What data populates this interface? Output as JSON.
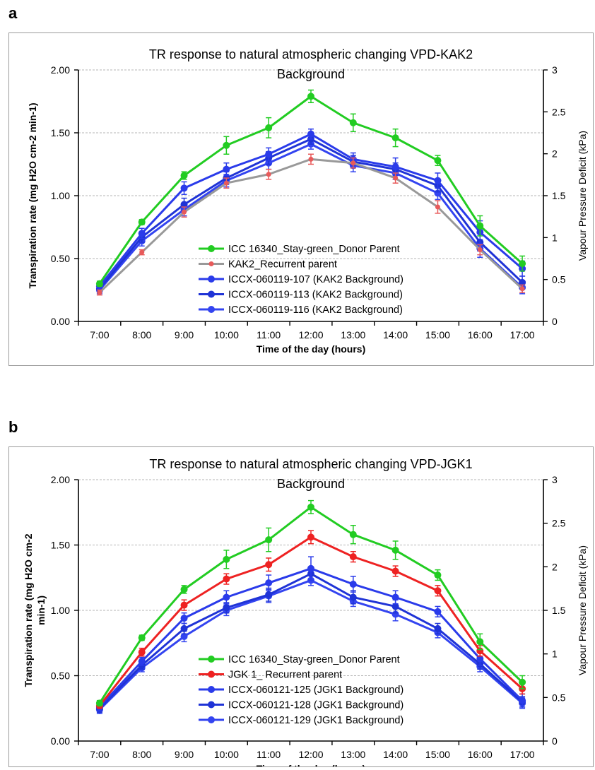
{
  "panels": [
    {
      "letter": "a"
    },
    {
      "letter": "b"
    }
  ],
  "chart_data": [
    {
      "type": "line",
      "title_lines": [
        "TR response to natural atmospheric changing VPD-KAK2",
        "Background"
      ],
      "xlabel": "Time of the day (hours)",
      "ylabel_lines": [
        "Transpiration rate (mg H2O cm-2 min-1)"
      ],
      "y2label": "Vapour Pressure Deficit (kPa)",
      "categories": [
        "7:00",
        "8:00",
        "9:00",
        "10:00",
        "11:00",
        "12:00",
        "13:00",
        "14:00",
        "15:00",
        "16:00",
        "17:00"
      ],
      "ylim": [
        0,
        2
      ],
      "yticks": [
        "0.00",
        "0.50",
        "1.00",
        "1.50",
        "2.00"
      ],
      "y2lim": [
        0,
        3
      ],
      "y2ticks": [
        "0",
        "0.5",
        "1",
        "1.5",
        "2",
        "2.5",
        "3"
      ],
      "grid": true,
      "legend_placement": "lower-center",
      "series": [
        {
          "name": "ICC 16340_Stay-green_Donor Parent",
          "color": "#22cc22",
          "values": [
            0.3,
            0.79,
            1.16,
            1.4,
            1.54,
            1.79,
            1.58,
            1.46,
            1.28,
            0.76,
            0.46
          ],
          "errors": [
            0.02,
            0.02,
            0.03,
            0.07,
            0.08,
            0.05,
            0.07,
            0.07,
            0.04,
            0.08,
            0.06
          ]
        },
        {
          "name": "KAK2_Recurrent parent",
          "color": "#999999",
          "marker_color": "#e85a5a",
          "values": [
            0.23,
            0.55,
            0.87,
            1.1,
            1.17,
            1.29,
            1.26,
            1.14,
            0.91,
            0.57,
            0.26
          ],
          "errors": [
            0.02,
            0.02,
            0.04,
            0.04,
            0.04,
            0.04,
            0.04,
            0.04,
            0.05,
            0.04,
            0.03
          ]
        },
        {
          "name": "ICCX-060119-107 (KAK2 Background)",
          "color": "#2a3bea",
          "values": [
            0.28,
            0.7,
            1.06,
            1.21,
            1.33,
            1.49,
            1.29,
            1.23,
            1.12,
            0.71,
            0.42
          ],
          "errors": [
            0.03,
            0.04,
            0.05,
            0.05,
            0.05,
            0.04,
            0.05,
            0.07,
            0.06,
            0.09,
            0.06
          ]
        },
        {
          "name": "ICCX-060119-113 (KAK2 Background)",
          "color": "#1f33d6",
          "values": [
            0.26,
            0.67,
            0.93,
            1.14,
            1.3,
            1.45,
            1.27,
            1.21,
            1.08,
            0.63,
            0.31
          ],
          "errors": [
            0.03,
            0.04,
            0.05,
            0.05,
            0.05,
            0.04,
            0.05,
            0.05,
            0.05,
            0.07,
            0.05
          ]
        },
        {
          "name": "ICCX-060119-116 (KAK2 Background)",
          "color": "#3344f0",
          "values": [
            0.25,
            0.64,
            0.89,
            1.12,
            1.26,
            1.41,
            1.24,
            1.18,
            1.02,
            0.58,
            0.27
          ],
          "errors": [
            0.03,
            0.04,
            0.05,
            0.05,
            0.05,
            0.04,
            0.05,
            0.05,
            0.05,
            0.07,
            0.05
          ]
        }
      ]
    },
    {
      "type": "line",
      "title_lines": [
        "TR response to natural atmospheric changing VPD-JGK1",
        "Background"
      ],
      "xlabel": "Time of the day (hours)",
      "ylabel_lines": [
        "Transpiration rate (mg H2O cm-2",
        "min-1)"
      ],
      "y2label": "Vapour Pressure Deficit (kPa)",
      "categories": [
        "7:00",
        "8:00",
        "9:00",
        "10:00",
        "11:00",
        "12:00",
        "13:00",
        "14:00",
        "15:00",
        "16:00",
        "17:00"
      ],
      "ylim": [
        0,
        2
      ],
      "yticks": [
        "0.00",
        "0.50",
        "1.00",
        "1.50",
        "2.00"
      ],
      "y2lim": [
        0,
        3
      ],
      "y2ticks": [
        "0",
        "0.5",
        "1",
        "1.5",
        "2",
        "2.5",
        "3"
      ],
      "grid": true,
      "legend_placement": "lower-center",
      "series": [
        {
          "name": "ICC 16340_Stay-green_Donor Parent",
          "color": "#22cc22",
          "values": [
            0.29,
            0.79,
            1.16,
            1.39,
            1.54,
            1.79,
            1.58,
            1.46,
            1.27,
            0.76,
            0.45
          ],
          "errors": [
            0.02,
            0.02,
            0.03,
            0.07,
            0.09,
            0.05,
            0.07,
            0.07,
            0.04,
            0.06,
            0.05
          ]
        },
        {
          "name": "JGK 1_ Recurrent parent",
          "color": "#ee2222",
          "values": [
            0.27,
            0.68,
            1.04,
            1.24,
            1.35,
            1.56,
            1.41,
            1.3,
            1.15,
            0.69,
            0.4
          ],
          "errors": [
            0.02,
            0.03,
            0.04,
            0.04,
            0.05,
            0.05,
            0.04,
            0.04,
            0.04,
            0.04,
            0.04
          ]
        },
        {
          "name": "ICCX-060121-125 (JGK1 Background)",
          "color": "#2a3bea",
          "values": [
            0.26,
            0.61,
            0.94,
            1.1,
            1.21,
            1.32,
            1.2,
            1.1,
            0.99,
            0.63,
            0.31
          ],
          "errors": [
            0.03,
            0.03,
            0.04,
            0.05,
            0.06,
            0.09,
            0.06,
            0.05,
            0.04,
            0.05,
            0.05
          ]
        },
        {
          "name": "ICCX-060121-128 (JGK1 Background)",
          "color": "#1f33d6",
          "values": [
            0.25,
            0.58,
            0.86,
            1.02,
            1.12,
            1.28,
            1.1,
            1.03,
            0.86,
            0.59,
            0.3
          ],
          "errors": [
            0.03,
            0.03,
            0.04,
            0.04,
            0.05,
            0.05,
            0.05,
            0.05,
            0.04,
            0.04,
            0.04
          ]
        },
        {
          "name": "ICCX-060121-129 (JGK1 Background)",
          "color": "#3344f0",
          "values": [
            0.24,
            0.56,
            0.8,
            1.0,
            1.11,
            1.23,
            1.07,
            0.97,
            0.83,
            0.57,
            0.29
          ],
          "errors": [
            0.03,
            0.03,
            0.04,
            0.04,
            0.05,
            0.04,
            0.04,
            0.05,
            0.04,
            0.04,
            0.04
          ]
        }
      ]
    }
  ]
}
